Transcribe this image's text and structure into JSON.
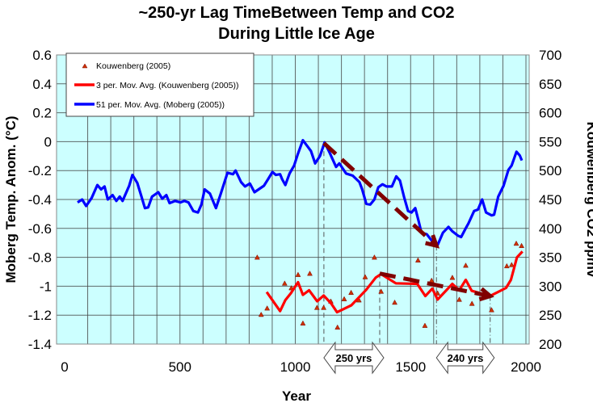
{
  "chart_data": {
    "type": "line",
    "title": [
      "~250-yr Lag TimeBetween Temp and CO2",
      "During Little Ice Age"
    ],
    "xlabel": "Year",
    "ylabel": "Moberg Temp. Anom. (°C)",
    "y2label": "Kouwenberg CO2 ppmv",
    "xlim": [
      -35,
      2020
    ],
    "ylim": [
      -1.4,
      0.6
    ],
    "y2lim": [
      200,
      700
    ],
    "xticks": [
      0,
      500,
      1000,
      1500,
      2000
    ],
    "yticks": [
      0.6,
      0.4,
      0.2,
      0,
      -0.2,
      -0.4,
      -0.6,
      -0.8,
      -1,
      -1.2,
      -1.4
    ],
    "y2ticks": [
      700,
      650,
      600,
      550,
      500,
      450,
      400,
      350,
      300,
      250,
      200
    ],
    "grid": true,
    "x_grid_step": 100,
    "background": "#ccffff",
    "legend_position": "top-left",
    "legend": [
      "Kouwenberg (2005)",
      "3 per. Mov. Avg. (Kouwenberg (2005))",
      "51 per. Mov. Avg. (Moberg (2005))"
    ],
    "series": [
      {
        "name": "Kouwenberg (2005)",
        "axis": "right",
        "kind": "scatter-triangle",
        "color": "#cc3300",
        "x": [
          835,
          852,
          878,
          954,
          983,
          1012,
          1033,
          1063,
          1094,
          1123,
          1154,
          1183,
          1212,
          1242,
          1276,
          1303,
          1343,
          1372,
          1431,
          1532,
          1562,
          1591,
          1617,
          1681,
          1711,
          1739,
          1766,
          1851,
          1917,
          1938,
          1958,
          1981
        ],
        "y": [
          350,
          251,
          262,
          305,
          297,
          320,
          236,
          322,
          263,
          263,
          274,
          229,
          278,
          289,
          276,
          316,
          350,
          291,
          272,
          345,
          232,
          310,
          288,
          315,
          277,
          336,
          270,
          259,
          335,
          337,
          374,
          370
        ]
      },
      {
        "name": "3 per. Mov. Avg. (Kouwenberg (2005))",
        "axis": "right",
        "kind": "line",
        "color": "#ff0000",
        "x": [
          876,
          934,
          957,
          981,
          1012,
          1033,
          1060,
          1095,
          1123,
          1156,
          1181,
          1243,
          1308,
          1349,
          1372,
          1436,
          1529,
          1564,
          1594,
          1617,
          1681,
          1711,
          1739,
          1765,
          1844,
          1914,
          1935,
          1961,
          1985
        ],
        "y": [
          290,
          257,
          276,
          288,
          307,
          285,
          293,
          274,
          284,
          270,
          255,
          267,
          294,
          315,
          321,
          305,
          304,
          283,
          296,
          277,
          304,
          293,
          311,
          292,
          283,
          297,
          311,
          350,
          360
        ]
      },
      {
        "name": "51 per. Mov. Avg. (Moberg (2005))",
        "axis": "left",
        "kind": "line",
        "color": "#0000ff",
        "x": [
          56,
          76,
          93,
          117,
          142,
          158,
          173,
          187,
          208,
          224,
          239,
          251,
          280,
          294,
          315,
          333,
          348,
          362,
          379,
          406,
          423,
          441,
          455,
          479,
          502,
          519,
          537,
          558,
          578,
          593,
          607,
          630,
          656,
          677,
          706,
          730,
          741,
          765,
          782,
          803,
          823,
          841,
          864,
          882,
          901,
          916,
          934,
          943,
          957,
          975,
          995,
          1010,
          1033,
          1068,
          1086,
          1107,
          1127,
          1150,
          1177,
          1191,
          1220,
          1249,
          1278,
          1290,
          1308,
          1325,
          1343,
          1360,
          1378,
          1395,
          1419,
          1438,
          1454,
          1471,
          1489,
          1504,
          1520,
          1535,
          1547,
          1570,
          1594,
          1617,
          1640,
          1664,
          1681,
          1705,
          1719,
          1737,
          1751,
          1775,
          1792,
          1810,
          1827,
          1851,
          1862,
          1880,
          1903,
          1924,
          1938,
          1959,
          1973,
          1982
        ],
        "y": [
          -0.42,
          -0.4,
          -0.445,
          -0.39,
          -0.3,
          -0.33,
          -0.31,
          -0.4,
          -0.37,
          -0.41,
          -0.38,
          -0.41,
          -0.305,
          -0.23,
          -0.285,
          -0.38,
          -0.46,
          -0.455,
          -0.38,
          -0.35,
          -0.395,
          -0.37,
          -0.425,
          -0.41,
          -0.42,
          -0.41,
          -0.42,
          -0.48,
          -0.49,
          -0.435,
          -0.33,
          -0.36,
          -0.46,
          -0.36,
          -0.215,
          -0.225,
          -0.2,
          -0.28,
          -0.31,
          -0.29,
          -0.35,
          -0.33,
          -0.305,
          -0.26,
          -0.21,
          -0.23,
          -0.225,
          -0.26,
          -0.3,
          -0.22,
          -0.165,
          -0.09,
          0.01,
          -0.065,
          -0.15,
          -0.1,
          -0.005,
          -0.08,
          -0.175,
          -0.15,
          -0.22,
          -0.235,
          -0.28,
          -0.33,
          -0.43,
          -0.435,
          -0.4,
          -0.315,
          -0.295,
          -0.31,
          -0.31,
          -0.24,
          -0.27,
          -0.38,
          -0.48,
          -0.49,
          -0.46,
          -0.55,
          -0.63,
          -0.64,
          -0.69,
          -0.715,
          -0.63,
          -0.59,
          -0.62,
          -0.65,
          -0.66,
          -0.605,
          -0.565,
          -0.48,
          -0.47,
          -0.4,
          -0.49,
          -0.51,
          -0.505,
          -0.38,
          -0.305,
          -0.195,
          -0.165,
          -0.07,
          -0.095,
          -0.13
        ]
      }
    ],
    "trend_arrows": [
      {
        "color": "#800000",
        "from": {
          "year": 1124,
          "temp": -0.01
        },
        "to": {
          "year": 1612,
          "temp": -0.72
        }
      },
      {
        "color": "#800000",
        "from": {
          "year": 1366,
          "co2": 322
        },
        "to": {
          "year": 1845,
          "co2": 283
        }
      }
    ],
    "lag_markers": [
      {
        "label": "250 yrs",
        "from_year": 1124,
        "to_year": 1366
      },
      {
        "label": "240 yrs",
        "from_year": 1612,
        "to_year": 1845
      }
    ]
  }
}
